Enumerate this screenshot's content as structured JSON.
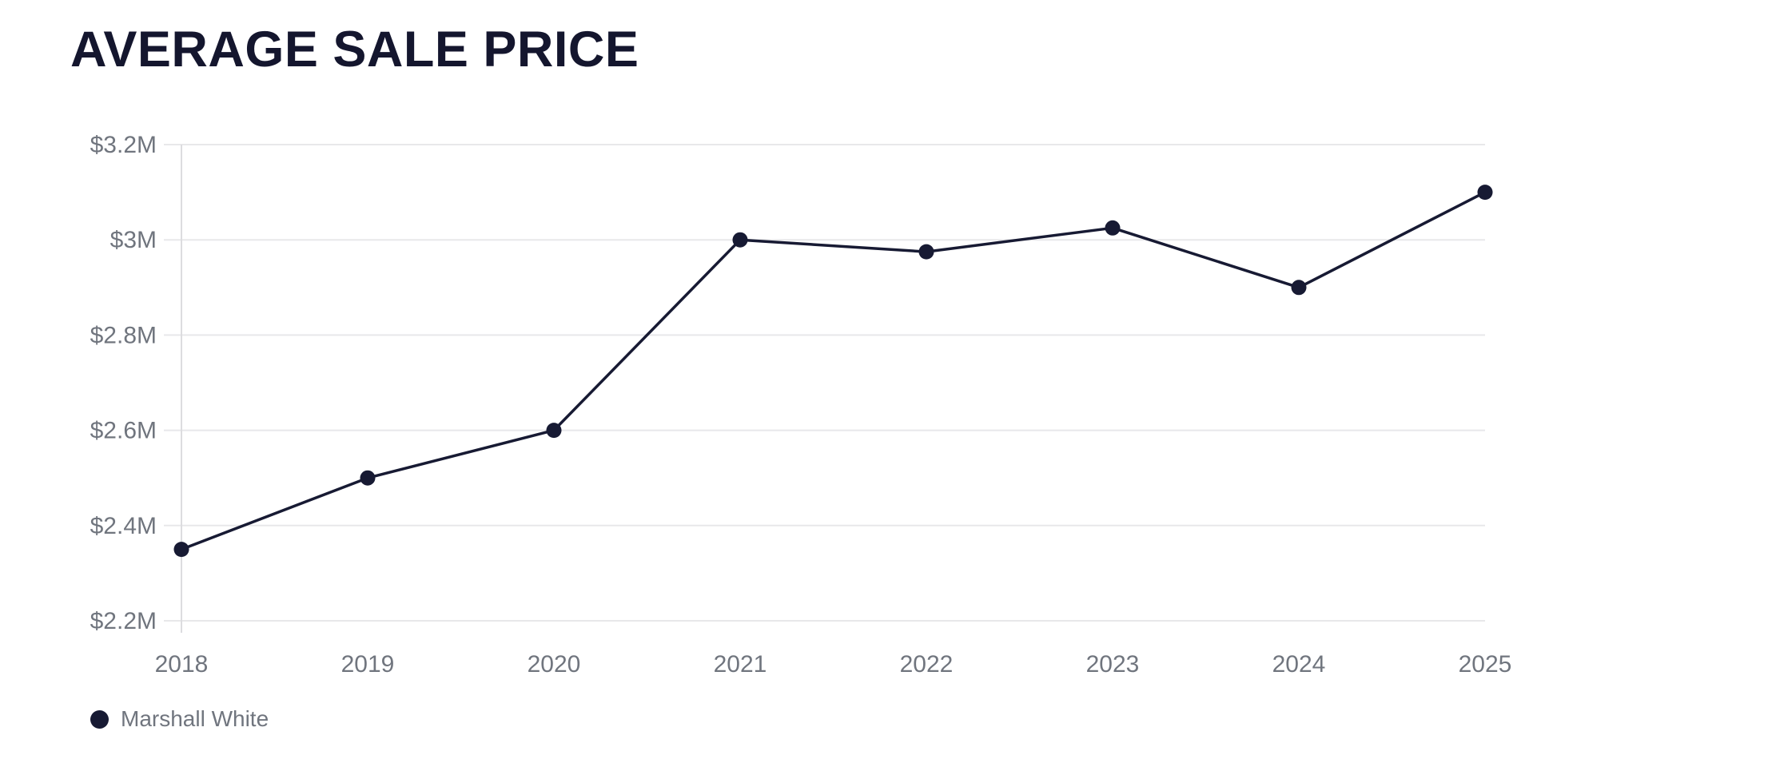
{
  "header": {
    "title": "AVERAGE SALE PRICE"
  },
  "chart_data": {
    "type": "line",
    "title": "AVERAGE SALE PRICE",
    "x": [
      "2018",
      "2019",
      "2020",
      "2021",
      "2022",
      "2023",
      "2024",
      "2025"
    ],
    "series": [
      {
        "name": "Marshall White",
        "values": [
          2.35,
          2.5,
          2.6,
          3.0,
          2.975,
          3.025,
          2.9,
          3.1
        ]
      }
    ],
    "value_unit": "$M",
    "ylim": [
      2.2,
      3.2
    ],
    "y_ticks": [
      2.2,
      2.4,
      2.6,
      2.8,
      3.0,
      3.2
    ],
    "y_tick_labels": [
      "$2.2M",
      "$2.4M",
      "$2.6M",
      "$2.8M",
      "$3M",
      "$3.2M"
    ],
    "grid": "horizontal",
    "legend_position": "bottom-left",
    "colors": {
      "line": "#171a33",
      "point": "#171a33",
      "grid": "#e8e8ea",
      "axis": "#dcdcdf",
      "tick_text": "#70757e",
      "title_text": "#14162e"
    }
  },
  "legend": {
    "items": [
      {
        "label": "Marshall White",
        "color": "#171a33"
      }
    ]
  }
}
